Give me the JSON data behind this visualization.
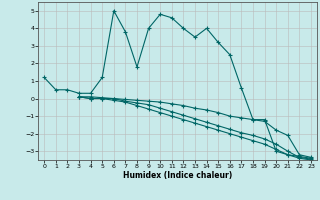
{
  "title": "",
  "xlabel": "Humidex (Indice chaleur)",
  "ylabel": "",
  "bg_color": "#c8eaea",
  "grid_color": "#bbbbbb",
  "line_color": "#006666",
  "xlim": [
    -0.5,
    23.5
  ],
  "ylim": [
    -3.5,
    5.5
  ],
  "xticks": [
    0,
    1,
    2,
    3,
    4,
    5,
    6,
    7,
    8,
    9,
    10,
    11,
    12,
    13,
    14,
    15,
    16,
    17,
    18,
    19,
    20,
    21,
    22,
    23
  ],
  "yticks": [
    -3,
    -2,
    -1,
    0,
    1,
    2,
    3,
    4,
    5
  ],
  "line1_x": [
    0,
    1,
    2,
    3,
    4,
    5,
    6,
    7,
    8,
    9,
    10,
    11,
    12,
    13,
    14,
    15,
    16,
    17,
    18,
    19,
    20,
    21,
    22,
    23
  ],
  "line1_y": [
    1.2,
    0.5,
    0.5,
    0.3,
    0.3,
    1.2,
    5.0,
    3.8,
    1.8,
    4.0,
    4.8,
    4.6,
    4.0,
    3.5,
    4.0,
    3.2,
    2.5,
    0.6,
    -1.2,
    -1.2,
    -3.0,
    -3.2,
    -3.3,
    -3.4
  ],
  "line2_x": [
    3,
    4,
    5,
    6,
    7,
    8,
    9,
    10,
    11,
    12,
    13,
    14,
    15,
    16,
    17,
    18,
    19,
    20,
    21,
    22,
    23
  ],
  "line2_y": [
    0.1,
    0.1,
    0.05,
    0.0,
    -0.05,
    -0.1,
    -0.15,
    -0.2,
    -0.3,
    -0.4,
    -0.55,
    -0.65,
    -0.8,
    -1.0,
    -1.1,
    -1.2,
    -1.3,
    -1.8,
    -2.1,
    -3.2,
    -3.35
  ],
  "line3_x": [
    3,
    4,
    5,
    6,
    7,
    8,
    9,
    10,
    11,
    12,
    13,
    14,
    15,
    16,
    17,
    18,
    19,
    20,
    21,
    22,
    23
  ],
  "line3_y": [
    0.1,
    0.0,
    0.0,
    0.0,
    -0.15,
    -0.25,
    -0.35,
    -0.55,
    -0.75,
    -0.95,
    -1.15,
    -1.35,
    -1.55,
    -1.75,
    -1.95,
    -2.1,
    -2.3,
    -2.6,
    -3.0,
    -3.35,
    -3.45
  ],
  "line4_x": [
    3,
    4,
    5,
    6,
    7,
    8,
    9,
    10,
    11,
    12,
    13,
    14,
    15,
    16,
    17,
    18,
    19,
    20,
    21,
    22,
    23
  ],
  "line4_y": [
    0.1,
    0.0,
    0.0,
    -0.1,
    -0.2,
    -0.4,
    -0.6,
    -0.8,
    -1.0,
    -1.2,
    -1.4,
    -1.6,
    -1.8,
    -2.0,
    -2.2,
    -2.4,
    -2.6,
    -2.9,
    -3.2,
    -3.4,
    -3.5
  ]
}
